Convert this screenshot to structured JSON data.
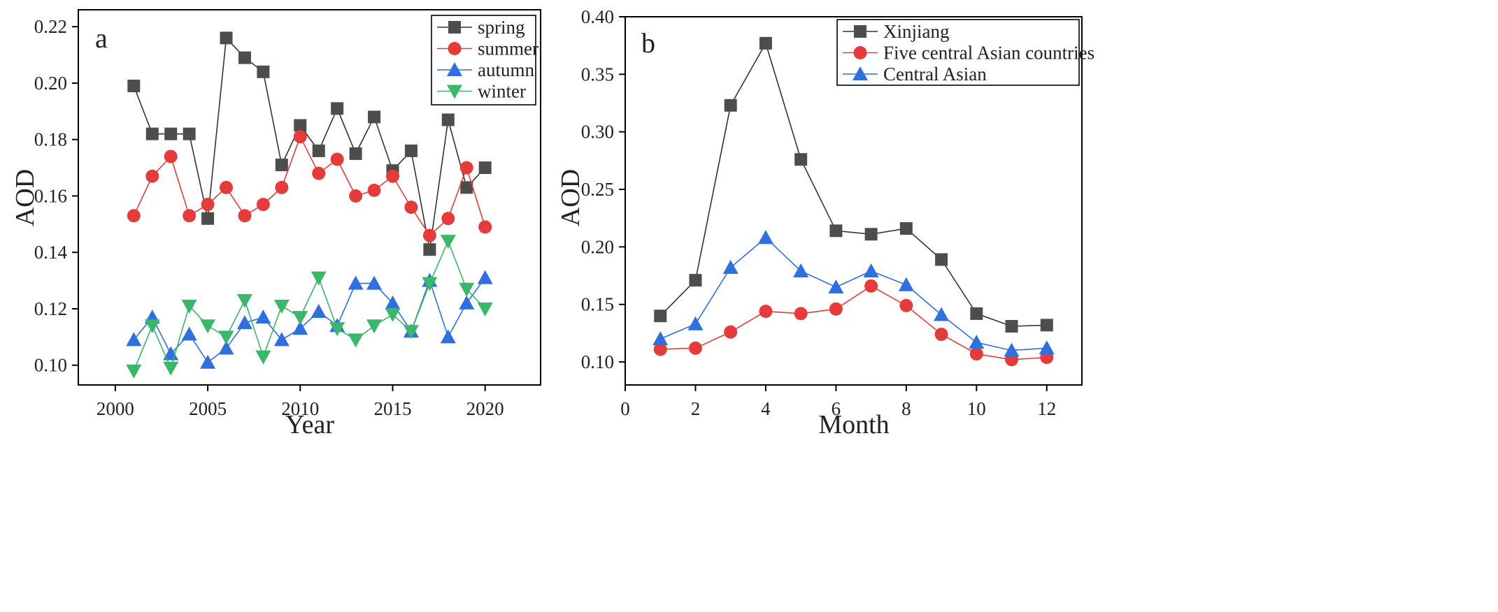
{
  "chart_data": [
    {
      "panel": "a",
      "type": "line",
      "xlabel": "Year",
      "ylabel": "AOD",
      "xlim": [
        1998,
        2023
      ],
      "ylim": [
        0.093,
        0.226
      ],
      "xticks": [
        2000,
        2005,
        2010,
        2015,
        2020
      ],
      "xtick_labels": [
        "2000",
        "2005",
        "2010",
        "2015",
        "2020"
      ],
      "yticks": [
        0.1,
        0.12,
        0.14,
        0.16,
        0.18,
        0.2,
        0.22
      ],
      "ytick_labels": [
        "0.10",
        "0.12",
        "0.14",
        "0.16",
        "0.18",
        "0.20",
        "0.22"
      ],
      "legend_position": "top-right",
      "grid": false,
      "x": [
        2001,
        2002,
        2003,
        2004,
        2005,
        2006,
        2007,
        2008,
        2009,
        2010,
        2011,
        2012,
        2013,
        2014,
        2015,
        2016,
        2017,
        2018,
        2019,
        2020
      ],
      "series": [
        {
          "name": "spring",
          "marker": "square",
          "marker_color": "#4d4d4d",
          "line_color": "#333333",
          "values": [
            0.199,
            0.182,
            0.182,
            0.182,
            0.152,
            0.216,
            0.209,
            0.204,
            0.171,
            0.185,
            0.176,
            0.191,
            0.175,
            0.188,
            0.169,
            0.176,
            0.141,
            0.187,
            0.163,
            0.17
          ]
        },
        {
          "name": "summer",
          "marker": "circle",
          "marker_color": "#e63b3b",
          "line_color": "#e63b3b",
          "values": [
            0.153,
            0.167,
            0.174,
            0.153,
            0.157,
            0.163,
            0.153,
            0.157,
            0.163,
            0.181,
            0.168,
            0.173,
            0.16,
            0.162,
            0.167,
            0.156,
            0.146,
            0.152,
            0.17,
            0.149
          ]
        },
        {
          "name": "autumn",
          "marker": "triangle-up",
          "marker_color": "#2f6fde",
          "line_color": "#2f6fde",
          "values": [
            0.109,
            0.117,
            0.104,
            0.111,
            0.101,
            0.106,
            0.115,
            0.117,
            0.109,
            0.113,
            0.119,
            0.114,
            0.129,
            0.129,
            0.122,
            0.112,
            0.13,
            0.11,
            0.122,
            0.131
          ]
        },
        {
          "name": "winter",
          "marker": "triangle-down",
          "marker_color": "#3ab76a",
          "line_color": "#3ab76a",
          "values": [
            0.098,
            0.114,
            0.099,
            0.121,
            0.114,
            0.11,
            0.123,
            0.103,
            0.121,
            0.117,
            0.131,
            0.113,
            0.109,
            0.114,
            0.118,
            0.112,
            0.129,
            0.144,
            0.127,
            0.12
          ]
        }
      ]
    },
    {
      "panel": "b",
      "type": "line",
      "xlabel": "Month",
      "ylabel": "AOD",
      "xlim": [
        0,
        13
      ],
      "ylim": [
        0.08,
        0.4
      ],
      "xticks": [
        0,
        2,
        4,
        6,
        8,
        10,
        12
      ],
      "xtick_labels": [
        "0",
        "2",
        "4",
        "6",
        "8",
        "10",
        "12"
      ],
      "yticks": [
        0.1,
        0.15,
        0.2,
        0.25,
        0.3,
        0.35,
        0.4
      ],
      "ytick_labels": [
        "0.10",
        "0.15",
        "0.20",
        "0.25",
        "0.30",
        "0.35",
        "0.40"
      ],
      "legend_position": "top-right",
      "grid": false,
      "x": [
        1,
        2,
        3,
        4,
        5,
        6,
        7,
        8,
        9,
        10,
        11,
        12
      ],
      "series": [
        {
          "name": "Xinjiang",
          "marker": "square",
          "marker_color": "#4d4d4d",
          "line_color": "#333333",
          "values": [
            0.14,
            0.171,
            0.323,
            0.377,
            0.276,
            0.214,
            0.211,
            0.216,
            0.189,
            0.142,
            0.131,
            0.132
          ]
        },
        {
          "name": "Five central Asian countries",
          "marker": "circle",
          "marker_color": "#e63b3b",
          "line_color": "#e63b3b",
          "values": [
            0.111,
            0.112,
            0.126,
            0.144,
            0.142,
            0.146,
            0.166,
            0.149,
            0.124,
            0.107,
            0.102,
            0.104
          ]
        },
        {
          "name": "Central Asian",
          "marker": "triangle-up",
          "marker_color": "#2f6fde",
          "line_color": "#2f6fde",
          "values": [
            0.12,
            0.133,
            0.182,
            0.208,
            0.179,
            0.165,
            0.179,
            0.167,
            0.141,
            0.117,
            0.11,
            0.112
          ]
        }
      ]
    }
  ]
}
